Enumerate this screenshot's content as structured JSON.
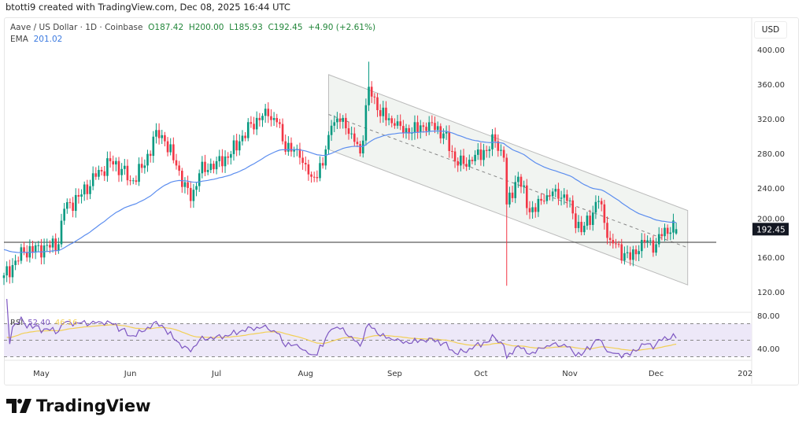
{
  "credit": "btotti9 created with TradingView.com, Dec 08, 2025 16:44 UTC",
  "legend": {
    "symbol": "Aave / US Dollar · 1D · Coinbase",
    "open": "O187.42",
    "high": "H200.00",
    "low": "L185.93",
    "close": "C192.45",
    "change": "+4.90 (+2.61%)",
    "ema_label": "EMA",
    "ema_value": "201.02"
  },
  "currency": "USD",
  "rsi": {
    "label": "RSI",
    "value": "52.40",
    "ma_value": "46.16",
    "ticks": [
      "80.00",
      "40.00"
    ]
  },
  "logo": "TradingView",
  "colors": {
    "up": "#089981",
    "down": "#f23645",
    "ema": "#5b8def",
    "rsi": "#7e57c2",
    "rsi_ma": "#f2cf55",
    "last": "#131722"
  },
  "chart_data": {
    "type": "candlestick",
    "title": "Aave / US Dollar · 1D · Coinbase",
    "ylim": [
      120,
      400
    ],
    "y_ticks": [
      "400.00",
      "360.00",
      "320.00",
      "280.00",
      "240.00",
      "200.00",
      "160.00",
      "120.00"
    ],
    "x_ticks": [
      "May",
      "Jun",
      "Jul",
      "Aug",
      "Sep",
      "Oct",
      "Nov",
      "Dec",
      "202"
    ],
    "last_price": "192.45",
    "last_candle": {
      "open": 187.42,
      "high": 200.0,
      "low": 185.93,
      "close": 192.45
    },
    "approx_closes": [
      [
        "2025-04-18",
        139
      ],
      [
        "2025-04-25",
        166
      ],
      [
        "2025-05-07",
        175
      ],
      [
        "2025-05-09",
        216
      ],
      [
        "2025-05-14",
        230
      ],
      [
        "2025-05-20",
        253
      ],
      [
        "2025-05-25",
        271
      ],
      [
        "2025-05-29",
        262
      ],
      [
        "2025-06-01",
        248
      ],
      [
        "2025-06-06",
        266
      ],
      [
        "2025-06-10",
        307
      ],
      [
        "2025-06-13",
        294
      ],
      [
        "2025-06-17",
        266
      ],
      [
        "2025-06-22",
        225
      ],
      [
        "2025-06-25",
        257
      ],
      [
        "2025-07-01",
        271
      ],
      [
        "2025-07-05",
        275
      ],
      [
        "2025-07-09",
        294
      ],
      [
        "2025-07-15",
        321
      ],
      [
        "2025-07-19",
        323
      ],
      [
        "2025-07-22",
        316
      ],
      [
        "2025-07-24",
        294
      ],
      [
        "2025-07-30",
        275
      ],
      [
        "2025-08-03",
        253
      ],
      [
        "2025-08-07",
        266
      ],
      [
        "2025-08-10",
        312
      ],
      [
        "2025-08-14",
        321
      ],
      [
        "2025-08-17",
        303
      ],
      [
        "2025-08-20",
        280
      ],
      [
        "2025-08-23",
        357
      ],
      [
        "2025-08-26",
        330
      ],
      [
        "2025-09-01",
        312
      ],
      [
        "2025-09-06",
        303
      ],
      [
        "2025-09-13",
        316
      ],
      [
        "2025-09-18",
        303
      ],
      [
        "2025-09-23",
        266
      ],
      [
        "2025-09-28",
        271
      ],
      [
        "2025-10-06",
        294
      ],
      [
        "2025-10-09",
        275
      ],
      [
        "2025-10-10",
        221
      ],
      [
        "2025-10-14",
        253
      ],
      [
        "2025-10-18",
        212
      ],
      [
        "2025-10-23",
        225
      ],
      [
        "2025-10-27",
        239
      ],
      [
        "2025-10-31",
        225
      ],
      [
        "2025-11-05",
        189
      ],
      [
        "2025-11-11",
        225
      ],
      [
        "2025-11-15",
        180
      ],
      [
        "2025-11-22",
        157
      ],
      [
        "2025-11-26",
        180
      ],
      [
        "2025-12-01",
        175
      ],
      [
        "2025-12-04",
        194
      ],
      [
        "2025-12-08",
        192.45
      ]
    ],
    "extreme_wicks": [
      [
        "2025-08-23",
        "high",
        386
      ],
      [
        "2025-10-10",
        "low",
        127
      ]
    ],
    "ema_last": 201.02,
    "horizontal_line": 177.3,
    "channel": {
      "start": "2025-08-09",
      "end": "2025-12-12",
      "upper": [
        371,
        214
      ],
      "middle": [
        325,
        171
      ],
      "lower": [
        284.5,
        128
      ]
    }
  }
}
